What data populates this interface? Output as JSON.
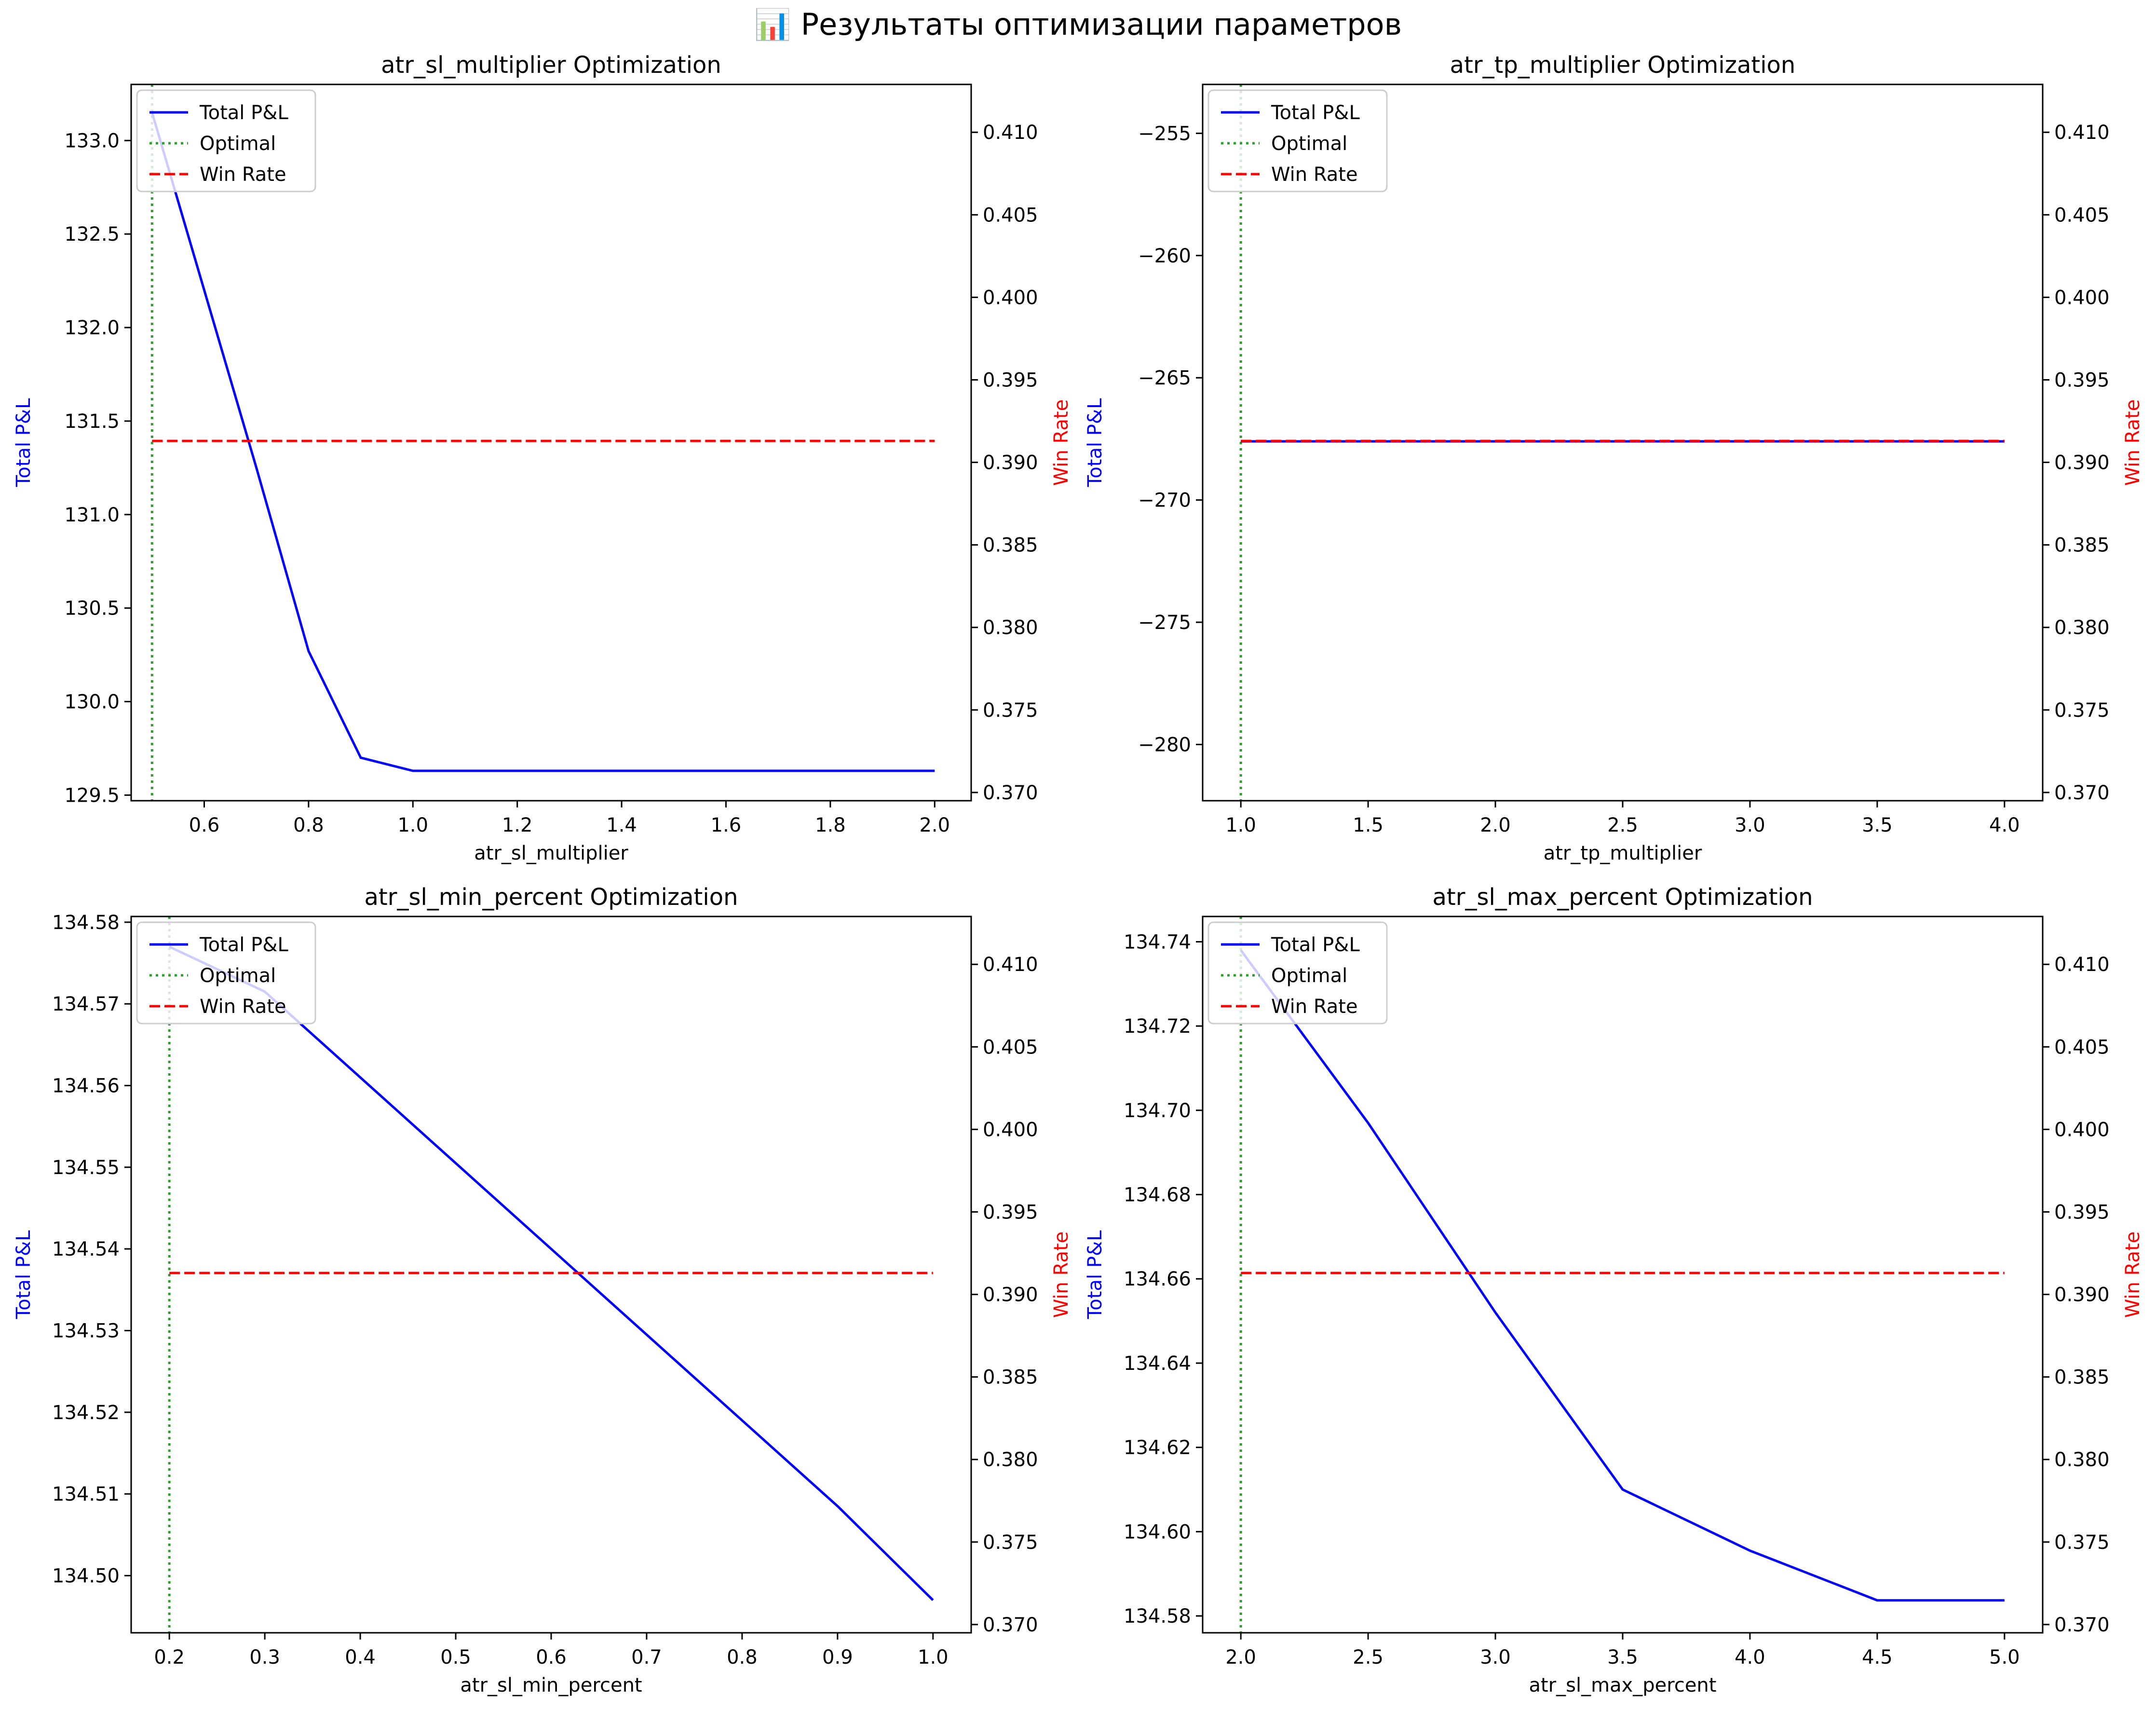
{
  "figure": {
    "suptitle": "📊 Результаты оптимизации параметров"
  },
  "chart_data": [
    {
      "type": "line",
      "title": "atr_sl_multiplier Optimization",
      "xlabel": "atr_sl_multiplier",
      "ylabel": "Total P&L",
      "y2label": "Win Rate",
      "xlim": [
        0.46,
        2.07
      ],
      "ylim": [
        129.47,
        133.3
      ],
      "y2lim": [
        0.3695,
        0.4129
      ],
      "xticks": [
        0.6,
        0.8,
        1.0,
        1.2,
        1.4,
        1.6,
        1.8,
        2.0
      ],
      "xtick_labels": [
        "0.6",
        "0.8",
        "1.0",
        "1.2",
        "1.4",
        "1.6",
        "1.8",
        "2.0"
      ],
      "yticks": [
        129.5,
        130.0,
        130.5,
        131.0,
        131.5,
        132.0,
        132.5,
        133.0
      ],
      "ytick_labels": [
        "129.5",
        "130.0",
        "130.5",
        "131.0",
        "131.5",
        "132.0",
        "132.5",
        "133.0"
      ],
      "y2ticks": [
        0.37,
        0.375,
        0.38,
        0.385,
        0.39,
        0.395,
        0.4,
        0.405,
        0.41
      ],
      "y2tick_labels": [
        "0.370",
        "0.375",
        "0.380",
        "0.385",
        "0.390",
        "0.395",
        "0.400",
        "0.405",
        "0.410"
      ],
      "optimal_x": 0.5,
      "series": [
        {
          "name": "Total P&L",
          "axis": "left",
          "x": [
            0.5,
            0.6,
            0.7,
            0.8,
            0.9,
            1.0,
            1.5,
            2.0
          ],
          "y": [
            133.15,
            132.2,
            131.25,
            130.27,
            129.7,
            129.63,
            129.63,
            129.63
          ]
        },
        {
          "name": "Win Rate",
          "axis": "right",
          "x": [
            0.5,
            2.0
          ],
          "y": [
            0.3913,
            0.3913
          ]
        }
      ],
      "legend": [
        "Total P&L",
        "Optimal",
        "Win Rate"
      ],
      "legend_loc": "upper left",
      "grid": false
    },
    {
      "type": "line",
      "title": "atr_tp_multiplier Optimization",
      "xlabel": "atr_tp_multiplier",
      "ylabel": "Total P&L",
      "y2label": "Win Rate",
      "xlim": [
        0.85,
        4.15
      ],
      "ylim": [
        -282.3,
        -253.0
      ],
      "y2lim": [
        0.3695,
        0.4129
      ],
      "xticks": [
        1.0,
        1.5,
        2.0,
        2.5,
        3.0,
        3.5,
        4.0
      ],
      "xtick_labels": [
        "1.0",
        "1.5",
        "2.0",
        "2.5",
        "3.0",
        "3.5",
        "4.0"
      ],
      "yticks": [
        -280,
        -275,
        -270,
        -265,
        -260,
        -255
      ],
      "ytick_labels": [
        "−280",
        "−275",
        "−270",
        "−265",
        "−260",
        "−255"
      ],
      "y2ticks": [
        0.37,
        0.375,
        0.38,
        0.385,
        0.39,
        0.395,
        0.4,
        0.405,
        0.41
      ],
      "y2tick_labels": [
        "0.370",
        "0.375",
        "0.380",
        "0.385",
        "0.390",
        "0.395",
        "0.400",
        "0.405",
        "0.410"
      ],
      "optimal_x": 1.0,
      "series": [
        {
          "name": "Total P&L",
          "axis": "left",
          "x": [
            1.0,
            4.0
          ],
          "y": [
            -267.6,
            -267.6
          ]
        },
        {
          "name": "Win Rate",
          "axis": "right",
          "x": [
            1.0,
            4.0
          ],
          "y": [
            0.3913,
            0.3913
          ]
        }
      ],
      "legend": [
        "Total P&L",
        "Optimal",
        "Win Rate"
      ],
      "legend_loc": "upper left",
      "grid": false
    },
    {
      "type": "line",
      "title": "atr_sl_min_percent Optimization",
      "xlabel": "atr_sl_min_percent",
      "ylabel": "Total P&L",
      "y2label": "Win Rate",
      "xlim": [
        0.16,
        1.04
      ],
      "ylim": [
        134.493,
        134.5807
      ],
      "y2lim": [
        0.3695,
        0.4129
      ],
      "xticks": [
        0.2,
        0.3,
        0.4,
        0.5,
        0.6,
        0.7,
        0.8,
        0.9,
        1.0
      ],
      "xtick_labels": [
        "0.2",
        "0.3",
        "0.4",
        "0.5",
        "0.6",
        "0.7",
        "0.8",
        "0.9",
        "1.0"
      ],
      "yticks": [
        134.5,
        134.51,
        134.52,
        134.53,
        134.54,
        134.55,
        134.56,
        134.57,
        134.58
      ],
      "ytick_labels": [
        "134.50",
        "134.51",
        "134.52",
        "134.53",
        "134.54",
        "134.55",
        "134.56",
        "134.57",
        "134.58"
      ],
      "y2ticks": [
        0.37,
        0.375,
        0.38,
        0.385,
        0.39,
        0.395,
        0.4,
        0.405,
        0.41
      ],
      "y2tick_labels": [
        "0.370",
        "0.375",
        "0.380",
        "0.385",
        "0.390",
        "0.395",
        "0.400",
        "0.405",
        "0.410"
      ],
      "optimal_x": 0.2,
      "series": [
        {
          "name": "Total P&L",
          "axis": "left",
          "x": [
            0.2,
            0.3,
            0.4,
            0.5,
            0.6,
            0.7,
            0.8,
            0.9,
            1.0
          ],
          "y": [
            134.577,
            134.5715,
            134.561,
            134.5505,
            134.54,
            134.5295,
            134.519,
            134.5085,
            134.497
          ]
        },
        {
          "name": "Win Rate",
          "axis": "right",
          "x": [
            0.2,
            1.0
          ],
          "y": [
            0.3913,
            0.3913
          ]
        }
      ],
      "legend": [
        "Total P&L",
        "Optimal",
        "Win Rate"
      ],
      "legend_loc": "upper left",
      "grid": false
    },
    {
      "type": "line",
      "title": "atr_sl_max_percent Optimization",
      "xlabel": "atr_sl_max_percent",
      "ylabel": "Total P&L",
      "y2label": "Win Rate",
      "xlim": [
        1.85,
        5.15
      ],
      "ylim": [
        134.576,
        134.746
      ],
      "y2lim": [
        0.3695,
        0.4129
      ],
      "xticks": [
        2.0,
        2.5,
        3.0,
        3.5,
        4.0,
        4.5,
        5.0
      ],
      "xtick_labels": [
        "2.0",
        "2.5",
        "3.0",
        "3.5",
        "4.0",
        "4.5",
        "5.0"
      ],
      "yticks": [
        134.58,
        134.6,
        134.62,
        134.64,
        134.66,
        134.68,
        134.7,
        134.72,
        134.74
      ],
      "ytick_labels": [
        "134.58",
        "134.60",
        "134.62",
        "134.64",
        "134.66",
        "134.68",
        "134.70",
        "134.72",
        "134.74"
      ],
      "y2ticks": [
        0.37,
        0.375,
        0.38,
        0.385,
        0.39,
        0.395,
        0.4,
        0.405,
        0.41
      ],
      "y2tick_labels": [
        "0.370",
        "0.375",
        "0.380",
        "0.385",
        "0.390",
        "0.395",
        "0.400",
        "0.405",
        "0.410"
      ],
      "optimal_x": 2.0,
      "series": [
        {
          "name": "Total P&L",
          "axis": "left",
          "x": [
            2.0,
            2.5,
            3.0,
            3.5,
            4.0,
            4.5,
            5.0
          ],
          "y": [
            134.738,
            134.697,
            134.652,
            134.61,
            134.5955,
            134.5837,
            134.5837
          ]
        },
        {
          "name": "Win Rate",
          "axis": "right",
          "x": [
            2.0,
            5.0
          ],
          "y": [
            0.3913,
            0.3913
          ]
        }
      ],
      "legend": [
        "Total P&L",
        "Optimal",
        "Win Rate"
      ],
      "legend_loc": "upper left",
      "grid": false
    }
  ],
  "colors": {
    "pnl_line": "#0000ff",
    "optimal_line": "#2ca02c",
    "winrate_line": "#ff0000",
    "ylabel_left": "#0000ff",
    "ylabel_right": "#ff0000",
    "axes": "#000000",
    "legend_border": "#cccccc"
  }
}
